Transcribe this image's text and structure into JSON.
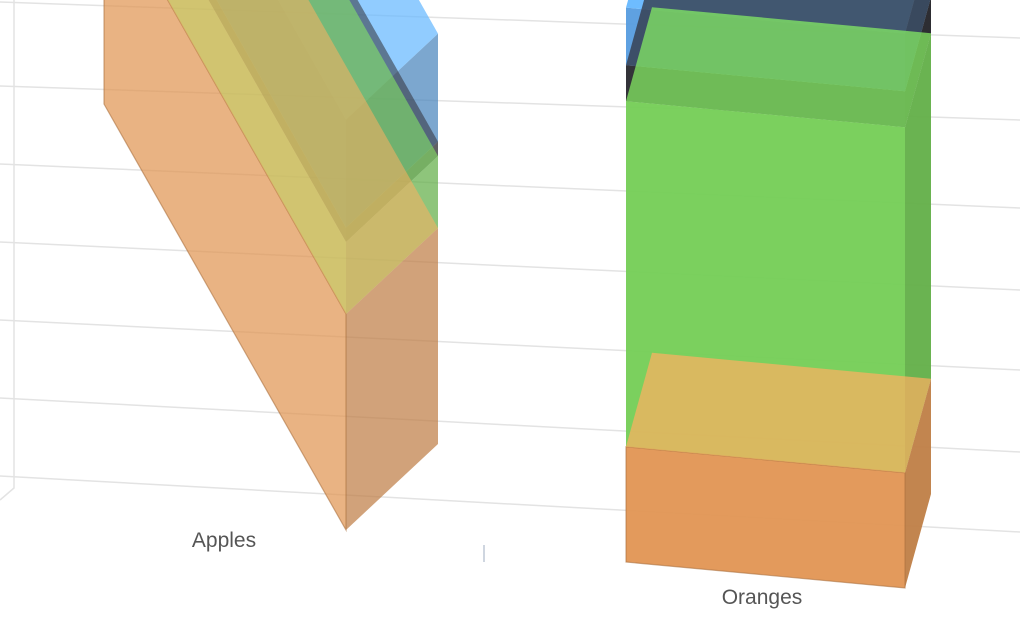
{
  "chart_data": {
    "type": "bar",
    "stacked": true,
    "three_d": true,
    "categories": [
      "Apples",
      "Oranges"
    ],
    "series": [
      {
        "color": "#f5a25a",
        "values": [
          3,
          1.6
        ]
      },
      {
        "color": "#7ee05c",
        "values": [
          1,
          4.8
        ]
      },
      {
        "color": "#2c2b32",
        "values": [
          0.2,
          0.5
        ]
      },
      {
        "color": "#5eaaf2",
        "values": [
          1.5,
          0.8
        ]
      }
    ],
    "xlabel": "",
    "ylabel": "",
    "ylim": [
      0,
      8
    ],
    "grid": true,
    "legend": "none"
  }
}
